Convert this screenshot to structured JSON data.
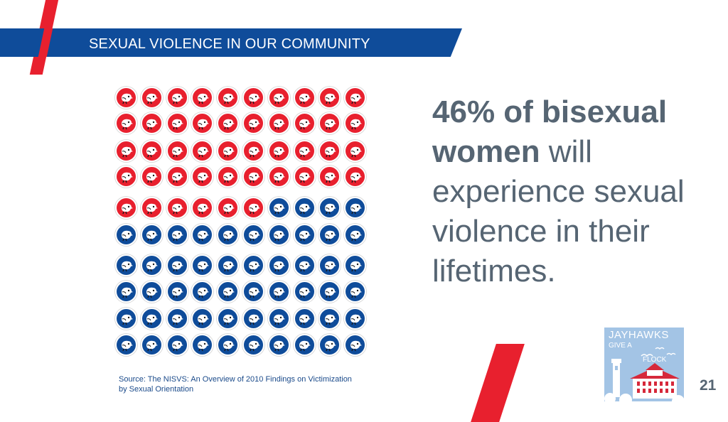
{
  "slide": {
    "title": "SEXUAL VIOLENCE IN OUR COMMUNITY",
    "page_number": "21"
  },
  "statement": {
    "bold_text": "46% of bisexual women",
    "rest_text": " will experience sexual violence in their lifetimes."
  },
  "source": "Source: The NISVS: An Overview of 2010 Findings on Victimization by Sexual Orientation",
  "pictogram": {
    "total": 100,
    "highlighted": 46,
    "highlight_color": "#e8202e",
    "base_color": "#0f4c9a",
    "icon": "jayhawk-icon"
  },
  "logo": {
    "line1": "JAYHAWKS",
    "line2": "GIVE A",
    "line3": "FLOCK"
  },
  "colors": {
    "band": "#0f4c9a",
    "accent": "#e8202e",
    "statement_text": "#566573",
    "logo_bg": "#a3c4e5"
  }
}
